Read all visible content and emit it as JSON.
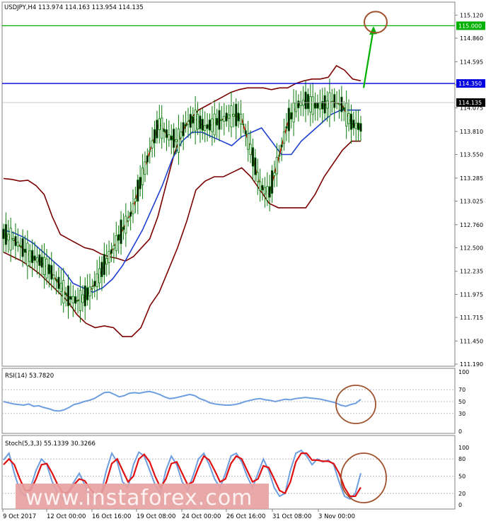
{
  "colors": {
    "bollinger": "#7a0000",
    "ema_fast": "#d40000",
    "ema_slow": "#1e3fd0",
    "candle": "#0a7a0a",
    "resistance": "#0000e0",
    "target": "#00b000",
    "annotation": "#a0522d",
    "osc_line": "#6e9ee0",
    "stoch_signal": "#e01010",
    "watermark_band": "#e8a0a0"
  },
  "chart_data": [
    {
      "type": "line",
      "title": "USDJPY,H4  113.974 114.163 113.954 114.135",
      "y_ticks": [
        "115.120",
        "114.860",
        "114.595",
        "114.335",
        "114.075",
        "113.810",
        "113.550",
        "113.285",
        "113.025",
        "112.760",
        "112.500",
        "112.235",
        "111.975",
        "111.715",
        "111.450",
        "111.190"
      ],
      "ylim": [
        111.19,
        115.25
      ],
      "x_ticks": [
        "9 Oct 2017",
        "12 Oct 00:00",
        "16 Oct 16:00",
        "19 Oct 08:00",
        "24 Oct 00:00",
        "26 Oct 16:00",
        "31 Oct 08:00",
        "3 Nov 00:00"
      ],
      "levels": [
        {
          "label": "115.000",
          "value": 115.0,
          "color": "#00b000"
        },
        {
          "label": "114.350",
          "value": 114.35,
          "color": "#0000e0"
        }
      ],
      "current": {
        "label": "114.135",
        "value": 114.135
      },
      "series": [
        {
          "key": "upper",
          "color": "#7a0000",
          "values": [
            113.28,
            113.27,
            113.25,
            113.26,
            113.2,
            113.1,
            112.85,
            112.65,
            112.6,
            112.55,
            112.5,
            112.48,
            112.43,
            112.4,
            112.38,
            112.35,
            112.4,
            112.5,
            112.6,
            112.85,
            113.2,
            113.55,
            113.8,
            113.95,
            114.05,
            114.1,
            114.15,
            114.2,
            114.25,
            114.28,
            114.3,
            114.3,
            114.3,
            114.28,
            114.3,
            114.3,
            114.35,
            114.38,
            114.4,
            114.4,
            114.42,
            114.55,
            114.5,
            114.4,
            114.38
          ]
        },
        {
          "key": "mid",
          "color": "#1e3fd0",
          "values": [
            112.7,
            112.67,
            112.62,
            112.55,
            112.45,
            112.35,
            112.25,
            112.1,
            112.05,
            112.0,
            112.05,
            112.15,
            112.3,
            112.5,
            112.7,
            112.95,
            113.2,
            113.5,
            113.7,
            113.8,
            113.8,
            113.75,
            113.7,
            113.65,
            113.75,
            113.8,
            113.85,
            113.7,
            113.55,
            113.55,
            113.7,
            113.8,
            113.9,
            114.0,
            114.05,
            114.05,
            114.05
          ]
        },
        {
          "key": "lower",
          "color": "#7a0000",
          "values": [
            112.45,
            112.4,
            112.35,
            112.28,
            112.2,
            112.1,
            112.0,
            111.9,
            111.75,
            111.65,
            111.6,
            111.62,
            111.6,
            111.5,
            111.5,
            111.6,
            111.85,
            112.0,
            112.25,
            112.5,
            112.8,
            113.15,
            113.25,
            113.3,
            113.3,
            113.35,
            113.4,
            113.3,
            113.15,
            113.0,
            112.95,
            112.95,
            112.95,
            112.95,
            113.1,
            113.3,
            113.45,
            113.6,
            113.7,
            113.7
          ]
        },
        {
          "key": "ema_fast",
          "color": "#d40000",
          "values": [
            112.65,
            112.6,
            112.5,
            112.4,
            112.35,
            112.25,
            112.1,
            111.95,
            111.9,
            111.95,
            112.1,
            112.3,
            112.5,
            112.7,
            112.9,
            113.25,
            113.6,
            113.9,
            113.75,
            113.7,
            113.9,
            113.95,
            113.85,
            113.9,
            113.95,
            114.0,
            113.95,
            113.6,
            113.2,
            113.1,
            113.5,
            113.9,
            114.1,
            114.15,
            114.1,
            114.1,
            114.15,
            114.1,
            113.9,
            113.85
          ]
        }
      ]
    },
    {
      "type": "line",
      "title": "RSI(14) 53.7820",
      "y_ticks": [
        "100",
        "70",
        "50",
        "30",
        "0"
      ],
      "ylim": [
        0,
        100
      ],
      "levels": [
        70,
        50,
        30
      ],
      "series": [
        {
          "name": "RSI(14)",
          "color": "#6e9ee0",
          "values": [
            50,
            48,
            46,
            45,
            44,
            46,
            42,
            43,
            40,
            38,
            35,
            34,
            36,
            40,
            45,
            47,
            50,
            52,
            55,
            60,
            65,
            66,
            62,
            58,
            60,
            64,
            65,
            64,
            66,
            67,
            65,
            62,
            58,
            55,
            56,
            58,
            60,
            62,
            60,
            55,
            52,
            48,
            46,
            45,
            44,
            44,
            45,
            47,
            50,
            52,
            54,
            55,
            53,
            52,
            50,
            52,
            54,
            53,
            55,
            56,
            57,
            56,
            55,
            54,
            52,
            50,
            48,
            44,
            42,
            45,
            47,
            53.78
          ]
        }
      ]
    },
    {
      "type": "line",
      "title": "Stoch(5,3,3) 55.1339 30.3266",
      "y_ticks": [
        "100",
        "80",
        "50",
        "20",
        "0"
      ],
      "ylim": [
        0,
        100
      ],
      "levels": [
        80,
        50,
        20
      ],
      "series": [
        {
          "name": "Stoch",
          "color": "#6e9ee0",
          "values": [
            78,
            90,
            55,
            25,
            15,
            30,
            60,
            80,
            70,
            40,
            20,
            10,
            25,
            40,
            55,
            35,
            15,
            10,
            20,
            60,
            90,
            75,
            40,
            30,
            70,
            92,
            85,
            60,
            35,
            20,
            60,
            85,
            70,
            40,
            25,
            50,
            80,
            90,
            70,
            45,
            30,
            55,
            85,
            90,
            75,
            50,
            30,
            55,
            80,
            60,
            30,
            15,
            20,
            60,
            90,
            95,
            85,
            70,
            80,
            75,
            78,
            70,
            40,
            15,
            10,
            20,
            55.13
          ]
        },
        {
          "name": "Signal",
          "color": "#e01010",
          "values": [
            70,
            80,
            70,
            45,
            25,
            25,
            45,
            70,
            72,
            55,
            35,
            20,
            22,
            35,
            45,
            42,
            28,
            18,
            18,
            40,
            72,
            80,
            60,
            40,
            50,
            80,
            88,
            75,
            50,
            30,
            45,
            72,
            75,
            55,
            35,
            40,
            65,
            85,
            78,
            60,
            40,
            45,
            72,
            85,
            80,
            60,
            40,
            45,
            68,
            65,
            45,
            25,
            20,
            40,
            75,
            90,
            90,
            78,
            78,
            76,
            76,
            72,
            55,
            30,
            15,
            15,
            30.33
          ]
        }
      ]
    }
  ],
  "watermark": "www.instaforex.com"
}
